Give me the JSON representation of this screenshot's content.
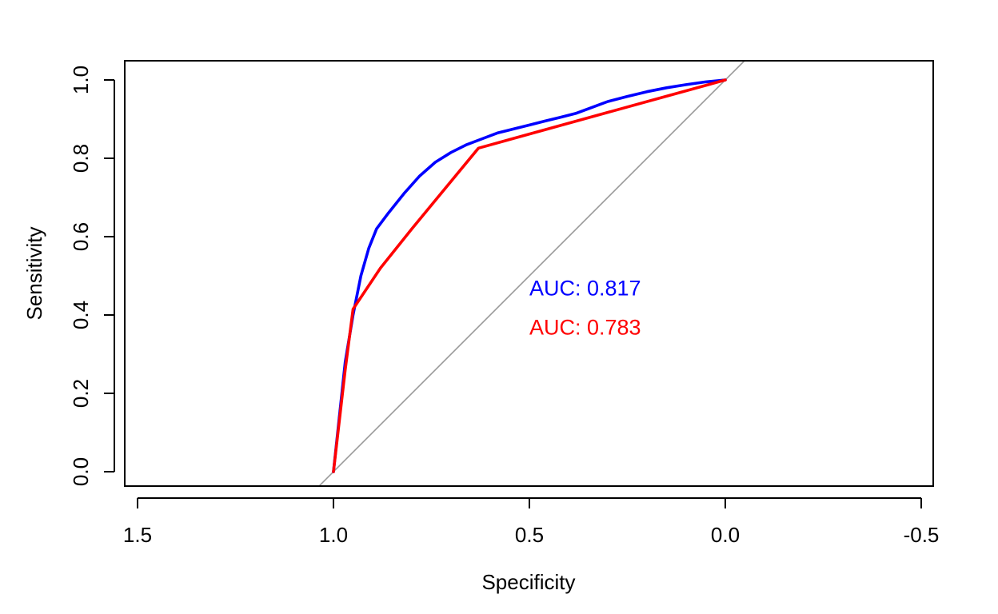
{
  "chart_data": {
    "type": "line",
    "title": "",
    "xlabel": "Specificity",
    "ylabel": "Sensitivity",
    "xlim": [
      1.5,
      -0.5
    ],
    "ylim": [
      0,
      1
    ],
    "x_reversed": true,
    "x_ticks": [
      1.5,
      1.0,
      0.5,
      0.0,
      -0.5
    ],
    "x_tick_labels": [
      "1.5",
      "1.0",
      "0.5",
      "0.0",
      "-0.5"
    ],
    "y_ticks": [
      0.0,
      0.2,
      0.4,
      0.6,
      0.8,
      1.0
    ],
    "y_tick_labels": [
      "0.0",
      "0.2",
      "0.4",
      "0.6",
      "0.8",
      "1.0"
    ],
    "grid": false,
    "legend": "none",
    "reference_line": {
      "from": [
        1,
        0
      ],
      "to": [
        0,
        1
      ],
      "color": "#999999"
    },
    "series": [
      {
        "color": "#0000ff",
        "points": [
          [
            1.0,
            0.0
          ],
          [
            0.97,
            0.28
          ],
          [
            0.95,
            0.4
          ],
          [
            0.93,
            0.5
          ],
          [
            0.91,
            0.57
          ],
          [
            0.89,
            0.62
          ],
          [
            0.86,
            0.66
          ],
          [
            0.82,
            0.71
          ],
          [
            0.78,
            0.755
          ],
          [
            0.74,
            0.79
          ],
          [
            0.7,
            0.815
          ],
          [
            0.66,
            0.835
          ],
          [
            0.62,
            0.85
          ],
          [
            0.58,
            0.865
          ],
          [
            0.54,
            0.875
          ],
          [
            0.5,
            0.885
          ],
          [
            0.46,
            0.895
          ],
          [
            0.42,
            0.905
          ],
          [
            0.38,
            0.915
          ],
          [
            0.34,
            0.93
          ],
          [
            0.3,
            0.945
          ],
          [
            0.25,
            0.958
          ],
          [
            0.2,
            0.97
          ],
          [
            0.15,
            0.98
          ],
          [
            0.1,
            0.988
          ],
          [
            0.05,
            0.995
          ],
          [
            0.0,
            1.0
          ]
        ]
      },
      {
        "color": "#ff0000",
        "points": [
          [
            1.0,
            0.0
          ],
          [
            0.97,
            0.26
          ],
          [
            0.95,
            0.415
          ],
          [
            0.88,
            0.52
          ],
          [
            0.8,
            0.62
          ],
          [
            0.63,
            0.826
          ],
          [
            0.0,
            1.0
          ]
        ]
      }
    ],
    "annotations": [
      {
        "text": "AUC: 0.817",
        "x": 0.5,
        "y": 0.47,
        "color": "#0000ff"
      },
      {
        "text": "AUC: 0.783",
        "x": 0.5,
        "y": 0.37,
        "color": "#ff0000"
      }
    ]
  }
}
